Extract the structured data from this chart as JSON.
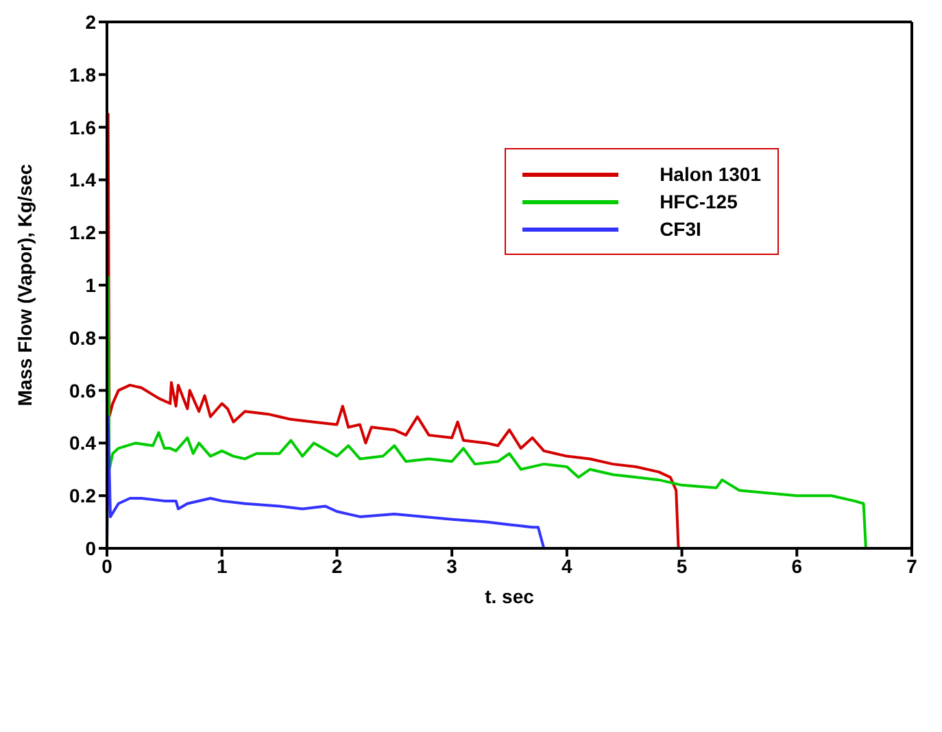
{
  "chart_data": {
    "type": "line",
    "xlabel": "t. sec",
    "ylabel": "Mass Flow (Vapor), Kg/sec",
    "xlim": [
      0,
      7
    ],
    "ylim": [
      0,
      2
    ],
    "xticks": [
      0,
      1,
      2,
      3,
      4,
      5,
      6,
      7
    ],
    "yticks": [
      0,
      0.2,
      0.4,
      0.6,
      0.8,
      1,
      1.2,
      1.4,
      1.6,
      1.8,
      2
    ],
    "legend": "top right",
    "marker": "none",
    "line_style": "solid",
    "series": [
      {
        "name": "Halon 1301",
        "color": "#d40000",
        "x": [
          0,
          0.01,
          0.02,
          0.05,
          0.1,
          0.2,
          0.3,
          0.45,
          0.55,
          0.56,
          0.6,
          0.62,
          0.7,
          0.72,
          0.8,
          0.85,
          0.9,
          1.0,
          1.05,
          1.1,
          1.2,
          1.4,
          1.5,
          1.6,
          1.8,
          2.0,
          2.05,
          2.1,
          2.2,
          2.25,
          2.3,
          2.5,
          2.6,
          2.7,
          2.8,
          3.0,
          3.05,
          3.1,
          3.3,
          3.4,
          3.5,
          3.6,
          3.7,
          3.8,
          3.9,
          4.0,
          4.2,
          4.4,
          4.6,
          4.8,
          4.9,
          4.95,
          4.97
        ],
        "values": [
          0,
          1.65,
          0.5,
          0.55,
          0.6,
          0.62,
          0.61,
          0.57,
          0.55,
          0.63,
          0.54,
          0.62,
          0.53,
          0.6,
          0.52,
          0.58,
          0.5,
          0.55,
          0.53,
          0.48,
          0.52,
          0.51,
          0.5,
          0.49,
          0.48,
          0.47,
          0.54,
          0.46,
          0.47,
          0.4,
          0.46,
          0.45,
          0.43,
          0.5,
          0.43,
          0.42,
          0.48,
          0.41,
          0.4,
          0.39,
          0.45,
          0.38,
          0.42,
          0.37,
          0.36,
          0.35,
          0.34,
          0.32,
          0.31,
          0.29,
          0.27,
          0.22,
          0
        ]
      },
      {
        "name": "HFC-125",
        "color": "#00cc00",
        "x": [
          0,
          0.01,
          0.02,
          0.05,
          0.1,
          0.25,
          0.4,
          0.45,
          0.5,
          0.55,
          0.6,
          0.7,
          0.75,
          0.8,
          0.9,
          1.0,
          1.1,
          1.2,
          1.3,
          1.5,
          1.6,
          1.7,
          1.8,
          2.0,
          2.1,
          2.2,
          2.4,
          2.5,
          2.6,
          2.8,
          3.0,
          3.1,
          3.2,
          3.4,
          3.5,
          3.6,
          3.8,
          4.0,
          4.1,
          4.2,
          4.4,
          4.6,
          4.8,
          5.0,
          5.3,
          5.35,
          5.5,
          6.0,
          6.3,
          6.5,
          6.58,
          6.6
        ],
        "values": [
          0,
          1.03,
          0.3,
          0.36,
          0.38,
          0.4,
          0.39,
          0.44,
          0.38,
          0.38,
          0.37,
          0.42,
          0.36,
          0.4,
          0.35,
          0.37,
          0.35,
          0.34,
          0.36,
          0.36,
          0.41,
          0.35,
          0.4,
          0.35,
          0.39,
          0.34,
          0.35,
          0.39,
          0.33,
          0.34,
          0.33,
          0.38,
          0.32,
          0.33,
          0.36,
          0.3,
          0.32,
          0.31,
          0.27,
          0.3,
          0.28,
          0.27,
          0.26,
          0.24,
          0.23,
          0.26,
          0.22,
          0.2,
          0.2,
          0.18,
          0.17,
          0
        ]
      },
      {
        "name": "CF3I",
        "color": "#3333ff",
        "x": [
          0,
          0.01,
          0.03,
          0.1,
          0.2,
          0.3,
          0.5,
          0.6,
          0.62,
          0.7,
          0.9,
          1.0,
          1.2,
          1.5,
          1.7,
          1.9,
          2.0,
          2.2,
          2.5,
          3.0,
          3.3,
          3.5,
          3.7,
          3.75,
          3.8
        ],
        "values": [
          0,
          0.5,
          0.12,
          0.17,
          0.19,
          0.19,
          0.18,
          0.18,
          0.15,
          0.17,
          0.19,
          0.18,
          0.17,
          0.16,
          0.15,
          0.16,
          0.14,
          0.12,
          0.13,
          0.11,
          0.1,
          0.09,
          0.08,
          0.08,
          0
        ]
      }
    ]
  }
}
